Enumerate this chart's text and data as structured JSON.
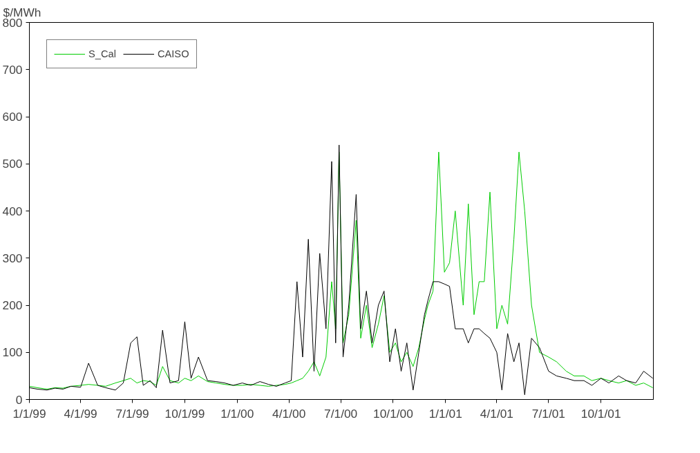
{
  "chart_data": {
    "type": "line",
    "ylabel": "$/MWh",
    "x": [
      "1999-01-01",
      "1999-01-15",
      "1999-02-01",
      "1999-02-15",
      "1999-03-01",
      "1999-03-15",
      "1999-04-01",
      "1999-04-15",
      "1999-05-01",
      "1999-05-15",
      "1999-06-01",
      "1999-06-15",
      "1999-06-28",
      "1999-07-09",
      "1999-07-20",
      "1999-08-01",
      "1999-08-12",
      "1999-08-23",
      "1999-09-05",
      "1999-09-20",
      "1999-10-01",
      "1999-10-12",
      "1999-10-25",
      "1999-11-10",
      "1999-11-25",
      "1999-12-10",
      "1999-12-25",
      "2000-01-10",
      "2000-01-25",
      "2000-02-10",
      "2000-02-25",
      "2000-03-10",
      "2000-03-25",
      "2000-04-05",
      "2000-04-15",
      "2000-04-25",
      "2000-05-05",
      "2000-05-15",
      "2000-05-25",
      "2000-06-05",
      "2000-06-15",
      "2000-06-22",
      "2000-06-28",
      "2000-07-05",
      "2000-07-15",
      "2000-07-28",
      "2000-08-05",
      "2000-08-15",
      "2000-08-25",
      "2000-09-05",
      "2000-09-15",
      "2000-09-25",
      "2000-10-05",
      "2000-10-15",
      "2000-10-25",
      "2000-11-05",
      "2000-11-15",
      "2000-11-25",
      "2000-12-01",
      "2000-12-10",
      "2000-12-20",
      "2000-12-30",
      "2001-01-08",
      "2001-01-18",
      "2001-02-01",
      "2001-02-10",
      "2001-02-20",
      "2001-03-01",
      "2001-03-10",
      "2001-03-20",
      "2001-04-01",
      "2001-04-10",
      "2001-04-20",
      "2001-05-01",
      "2001-05-10",
      "2001-05-20",
      "2001-06-01",
      "2001-06-15",
      "2001-07-01",
      "2001-07-15",
      "2001-08-01",
      "2001-08-15",
      "2001-09-01",
      "2001-09-15",
      "2001-10-01",
      "2001-10-15",
      "2001-11-01",
      "2001-11-15",
      "2001-12-01",
      "2001-12-15",
      "2001-12-31"
    ],
    "series": [
      {
        "name": "S_Cal",
        "color": "#00cc00",
        "values": [
          28,
          25,
          22,
          25,
          24,
          28,
          30,
          32,
          30,
          28,
          35,
          40,
          45,
          35,
          40,
          38,
          30,
          70,
          40,
          35,
          45,
          40,
          50,
          38,
          35,
          32,
          30,
          30,
          32,
          30,
          28,
          30,
          32,
          35,
          40,
          45,
          60,
          80,
          50,
          90,
          250,
          150,
          525,
          120,
          180,
          380,
          130,
          200,
          110,
          160,
          220,
          100,
          120,
          80,
          100,
          70,
          110,
          170,
          200,
          230,
          525,
          270,
          290,
          400,
          200,
          415,
          180,
          250,
          250,
          440,
          150,
          200,
          160,
          340,
          525,
          400,
          200,
          100,
          90,
          80,
          60,
          50,
          50,
          40,
          45,
          40,
          35,
          40,
          30,
          35,
          25
        ]
      },
      {
        "name": "CAISO",
        "color": "#000000",
        "values": [
          25,
          22,
          20,
          24,
          22,
          28,
          26,
          77,
          30,
          25,
          20,
          35,
          120,
          133,
          30,
          40,
          25,
          147,
          35,
          40,
          165,
          45,
          90,
          40,
          38,
          35,
          30,
          35,
          30,
          38,
          32,
          28,
          35,
          40,
          250,
          90,
          340,
          60,
          310,
          150,
          505,
          120,
          540,
          90,
          200,
          435,
          150,
          230,
          120,
          200,
          230,
          80,
          150,
          60,
          120,
          20,
          100,
          180,
          210,
          250,
          250,
          245,
          240,
          150,
          150,
          120,
          150,
          150,
          140,
          130,
          100,
          20,
          140,
          80,
          120,
          10,
          130,
          110,
          60,
          50,
          45,
          40,
          40,
          30,
          45,
          35,
          50,
          40,
          35,
          60,
          45
        ]
      }
    ],
    "xlim": [
      "1999-01-01",
      "2002-01-01"
    ],
    "xticks": [
      {
        "value": "1999-01-01",
        "label": "1/1/99"
      },
      {
        "value": "1999-04-01",
        "label": "4/1/99"
      },
      {
        "value": "1999-07-01",
        "label": "7/1/99"
      },
      {
        "value": "1999-10-01",
        "label": "10/1/99"
      },
      {
        "value": "2000-01-01",
        "label": "1/1/00"
      },
      {
        "value": "2000-04-01",
        "label": "4/1/00"
      },
      {
        "value": "2000-07-01",
        "label": "7/1/00"
      },
      {
        "value": "2000-10-01",
        "label": "10/1/00"
      },
      {
        "value": "2001-01-01",
        "label": "1/1/01"
      },
      {
        "value": "2001-04-01",
        "label": "4/1/01"
      },
      {
        "value": "2001-07-01",
        "label": "7/1/01"
      },
      {
        "value": "2001-10-01",
        "label": "10/1/01"
      }
    ],
    "ylim": [
      0,
      800
    ],
    "yticks": [
      0,
      100,
      200,
      300,
      400,
      500,
      600,
      700,
      800
    ],
    "grid": false,
    "legend": "top left",
    "marker": "none",
    "line_style": "solid"
  }
}
